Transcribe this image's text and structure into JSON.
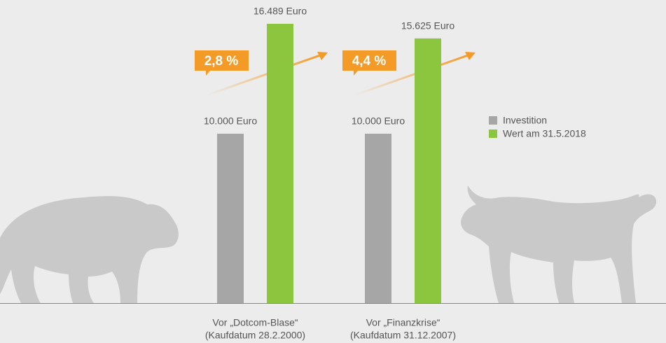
{
  "chart_data": {
    "type": "bar",
    "categories": [
      "Vor „Dotcom-Blase“",
      "Vor „Finanzkrise“"
    ],
    "category_sublabels": [
      "(Kaufdatum 28.2.2000)",
      "(Kaufdatum 31.12.2007)"
    ],
    "series": [
      {
        "name": "Investition",
        "color": "#a6a6a6",
        "values": [
          10000,
          10000
        ],
        "value_labels": [
          "10.000 Euro",
          "10.000 Euro"
        ]
      },
      {
        "name": "Wert am 31.5.2018",
        "color": "#8cc63f",
        "values": [
          16489,
          15625
        ],
        "value_labels": [
          "16.489 Euro",
          "15.625 Euro"
        ]
      }
    ],
    "annotations": [
      {
        "text": "2,8 %",
        "color": "#f39a27"
      },
      {
        "text": "4,4 %",
        "color": "#f39a27"
      }
    ],
    "legend": "right"
  }
}
